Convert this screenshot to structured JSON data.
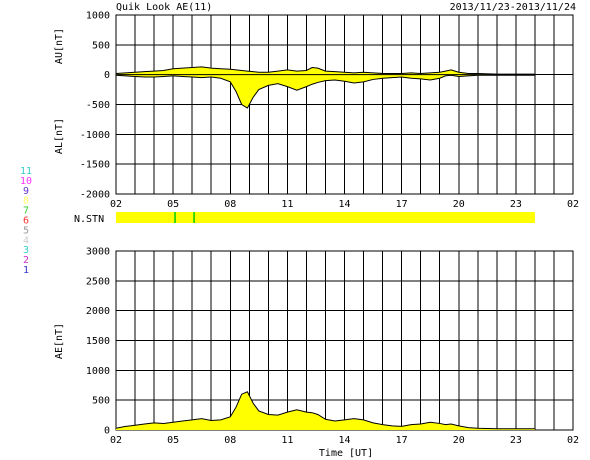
{
  "title_left": "Quik Look AE(11)",
  "title_right": "2013/11/23-2013/11/24",
  "x_label": "Time [UT]",
  "hours": [
    "02",
    "05",
    "08",
    "11",
    "14",
    "17",
    "20",
    "23",
    "02"
  ],
  "station_label": "N.STN",
  "station_numbers": [
    {
      "label": "11",
      "color": "#33cccc"
    },
    {
      "label": "10",
      "color": "#ff33ff"
    },
    {
      "label": "9",
      "color": "#6633cc"
    },
    {
      "label": "8",
      "color": "#ffff66"
    },
    {
      "label": "7",
      "color": "#33cc33"
    },
    {
      "label": "6",
      "color": "#ff3333"
    },
    {
      "label": "5",
      "color": "#999999"
    },
    {
      "label": "4",
      "color": "#cccccc"
    },
    {
      "label": "3",
      "color": "#33cccc"
    },
    {
      "label": "2",
      "color": "#cc33cc"
    },
    {
      "label": "1",
      "color": "#3333cc"
    }
  ],
  "colors": {
    "fill": "#ffff00",
    "line": "#000000",
    "station_bar": "#ffff00",
    "station_mark": "#00cc00"
  },
  "chart_data": [
    {
      "type": "area",
      "panel": "AU/AL",
      "ylabel_upper": "AU[nT]",
      "ylabel_lower": "AL[nT]",
      "y_ticks": [
        1000,
        500,
        0,
        -500,
        -1000,
        -1500,
        -2000
      ],
      "ylim": [
        -2000,
        1000
      ],
      "xlim_hours": [
        2,
        26
      ],
      "grid": true,
      "x_hours": [
        2,
        2.5,
        3,
        3.5,
        4,
        4.5,
        5,
        5.5,
        6,
        6.5,
        7,
        7.5,
        8,
        8.3,
        8.6,
        8.9,
        9.2,
        9.5,
        10,
        10.5,
        11,
        11.5,
        12,
        12.3,
        12.6,
        13,
        13.5,
        14,
        14.5,
        15,
        15.5,
        16,
        16.5,
        17,
        17.5,
        18,
        18.5,
        19,
        19.3,
        19.6,
        20,
        20.5,
        21,
        22,
        23,
        24
      ],
      "au": [
        20,
        30,
        40,
        50,
        60,
        70,
        100,
        110,
        120,
        130,
        110,
        100,
        90,
        80,
        70,
        60,
        50,
        40,
        40,
        60,
        80,
        60,
        70,
        120,
        110,
        60,
        50,
        40,
        30,
        40,
        30,
        20,
        20,
        20,
        30,
        20,
        30,
        40,
        60,
        80,
        40,
        20,
        20,
        10,
        10,
        10
      ],
      "al": [
        -10,
        -20,
        -30,
        -40,
        -40,
        -30,
        -20,
        -30,
        -40,
        -50,
        -40,
        -60,
        -120,
        -280,
        -500,
        -560,
        -380,
        -250,
        -180,
        -150,
        -200,
        -260,
        -200,
        -160,
        -130,
        -100,
        -90,
        -110,
        -140,
        -120,
        -80,
        -60,
        -50,
        -40,
        -60,
        -70,
        -90,
        -60,
        -20,
        -10,
        -30,
        -20,
        -10,
        -10,
        -10,
        -10
      ]
    },
    {
      "type": "area",
      "panel": "AE",
      "ylabel": "AE[nT]",
      "y_ticks": [
        3000,
        2500,
        2000,
        1500,
        1000,
        500,
        0
      ],
      "ylim": [
        0,
        3000
      ],
      "xlim_hours": [
        2,
        26
      ],
      "grid": true,
      "x_hours": [
        2,
        2.5,
        3,
        3.5,
        4,
        4.5,
        5,
        5.5,
        6,
        6.5,
        7,
        7.5,
        8,
        8.3,
        8.6,
        8.9,
        9.2,
        9.5,
        10,
        10.5,
        11,
        11.5,
        12,
        12.3,
        12.6,
        13,
        13.5,
        14,
        14.5,
        15,
        15.5,
        16,
        16.5,
        17,
        17.5,
        18,
        18.5,
        19,
        19.3,
        19.6,
        20,
        20.5,
        21,
        22,
        23,
        24
      ],
      "ae": [
        30,
        60,
        80,
        100,
        120,
        110,
        130,
        150,
        170,
        190,
        160,
        170,
        220,
        380,
        600,
        640,
        450,
        320,
        260,
        250,
        300,
        340,
        300,
        290,
        260,
        180,
        150,
        170,
        190,
        170,
        120,
        90,
        70,
        60,
        90,
        100,
        130,
        110,
        90,
        100,
        70,
        40,
        30,
        20,
        20,
        20
      ]
    }
  ],
  "station_bar": {
    "x_start_hour": 2,
    "x_end_hour": 24,
    "marks_hours": [
      5.1,
      6.1
    ]
  }
}
